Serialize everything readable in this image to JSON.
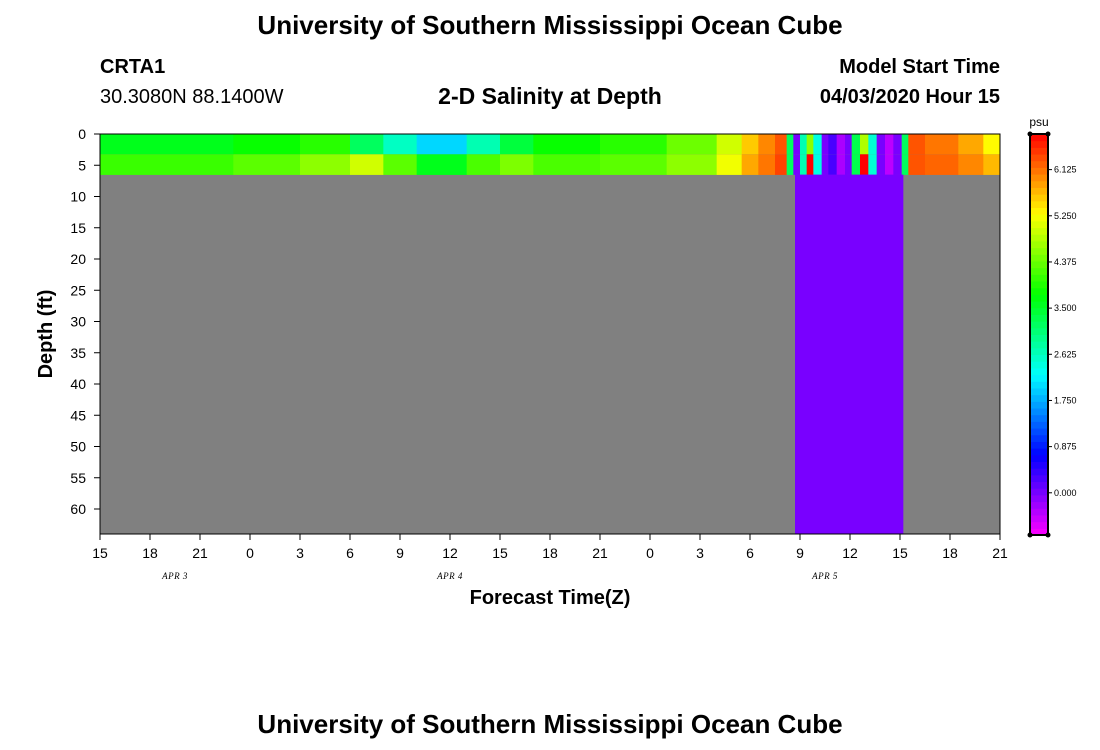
{
  "header": {
    "top_title": "University of Southern Mississippi Ocean Cube",
    "bottom_title": "University of Southern Mississippi Ocean Cube",
    "station_id": "CRTA1",
    "station_coords": "30.3080N 88.1400W",
    "plot_title": "2-D Salinity at Depth",
    "model_start_label": "Model Start Time",
    "model_start_value": "04/03/2020 Hour 15"
  },
  "chart_data": {
    "type": "heatmap",
    "title": "2-D Salinity at Depth",
    "xlabel": "Forecast Time(Z)",
    "ylabel": "Depth (ft)",
    "x_hours_range": [
      0,
      54
    ],
    "x_ticks": [
      {
        "h": 0,
        "label": "15"
      },
      {
        "h": 3,
        "label": "18"
      },
      {
        "h": 6,
        "label": "21"
      },
      {
        "h": 9,
        "label": "0"
      },
      {
        "h": 12,
        "label": "3"
      },
      {
        "h": 15,
        "label": "6"
      },
      {
        "h": 18,
        "label": "9"
      },
      {
        "h": 21,
        "label": "12"
      },
      {
        "h": 24,
        "label": "15"
      },
      {
        "h": 27,
        "label": "18"
      },
      {
        "h": 30,
        "label": "21"
      },
      {
        "h": 33,
        "label": "0"
      },
      {
        "h": 36,
        "label": "3"
      },
      {
        "h": 39,
        "label": "6"
      },
      {
        "h": 42,
        "label": "9"
      },
      {
        "h": 45,
        "label": "12"
      },
      {
        "h": 48,
        "label": "15"
      },
      {
        "h": 51,
        "label": "18"
      },
      {
        "h": 54,
        "label": "21"
      }
    ],
    "date_labels": [
      {
        "h": 4.5,
        "label": "APR 3"
      },
      {
        "h": 21,
        "label": "APR 4"
      },
      {
        "h": 43.5,
        "label": "APR 5"
      }
    ],
    "ylim": [
      0,
      64
    ],
    "y_ticks": [
      0,
      5,
      10,
      15,
      20,
      25,
      30,
      35,
      40,
      45,
      50,
      55,
      60
    ],
    "water_depth_ft": 6.5,
    "no_data_color": "#808080",
    "fill_value": 0.0,
    "surface_columns": [
      {
        "h_start": 0,
        "h_end": 8,
        "top": 3.6,
        "bottom": 4.1
      },
      {
        "h_start": 8,
        "h_end": 12,
        "top": 3.8,
        "bottom": 4.3
      },
      {
        "h_start": 12,
        "h_end": 15,
        "top": 4.0,
        "bottom": 4.6
      },
      {
        "h_start": 15,
        "h_end": 17,
        "top": 3.2,
        "bottom": 5.0
      },
      {
        "h_start": 17,
        "h_end": 19,
        "top": 2.6,
        "bottom": 4.3
      },
      {
        "h_start": 19,
        "h_end": 22,
        "top": 2.0,
        "bottom": 3.6
      },
      {
        "h_start": 22,
        "h_end": 24,
        "top": 2.7,
        "bottom": 4.2
      },
      {
        "h_start": 24,
        "h_end": 26,
        "top": 3.4,
        "bottom": 4.5
      },
      {
        "h_start": 26,
        "h_end": 30,
        "top": 3.8,
        "bottom": 4.2
      },
      {
        "h_start": 30,
        "h_end": 34,
        "top": 4.0,
        "bottom": 4.3
      },
      {
        "h_start": 34,
        "h_end": 37,
        "top": 4.4,
        "bottom": 4.6
      },
      {
        "h_start": 37,
        "h_end": 38.5,
        "top": 5.0,
        "bottom": 5.2
      },
      {
        "h_start": 38.5,
        "h_end": 39.5,
        "top": 5.6,
        "bottom": 5.8
      },
      {
        "h_start": 39.5,
        "h_end": 40.5,
        "top": 6.0,
        "bottom": 6.1
      },
      {
        "h_start": 40.5,
        "h_end": 41.2,
        "top": 6.3,
        "bottom": 6.4
      },
      {
        "h_start": 41.2,
        "h_end": 41.6,
        "top": 3.2,
        "bottom": 3.2
      },
      {
        "h_start": 41.6,
        "h_end": 42.0,
        "top": 0.0,
        "bottom": 0.0
      },
      {
        "h_start": 42.0,
        "h_end": 42.4,
        "top": 2.7,
        "bottom": 2.7
      },
      {
        "h_start": 42.4,
        "h_end": 42.8,
        "top": 4.6,
        "bottom": 6.8
      },
      {
        "h_start": 42.8,
        "h_end": 43.3,
        "top": 2.4,
        "bottom": 2.4
      },
      {
        "h_start": 43.3,
        "h_end": 43.7,
        "top": 0.0,
        "bottom": 0.0
      },
      {
        "h_start": 43.7,
        "h_end": 44.2,
        "top": 0.3,
        "bottom": 0.3
      },
      {
        "h_start": 44.2,
        "h_end": 44.7,
        "top": -0.3,
        "bottom": -0.3
      },
      {
        "h_start": 44.7,
        "h_end": 45.1,
        "top": 0.0,
        "bottom": 0.0
      },
      {
        "h_start": 45.1,
        "h_end": 45.6,
        "top": 3.3,
        "bottom": 3.3
      },
      {
        "h_start": 45.6,
        "h_end": 46.1,
        "top": 4.8,
        "bottom": 6.8
      },
      {
        "h_start": 46.1,
        "h_end": 46.6,
        "top": 2.5,
        "bottom": 2.5
      },
      {
        "h_start": 46.6,
        "h_end": 47.1,
        "top": 0.0,
        "bottom": 0.0
      },
      {
        "h_start": 47.1,
        "h_end": 47.6,
        "top": -0.4,
        "bottom": -0.4
      },
      {
        "h_start": 47.6,
        "h_end": 48.1,
        "top": 0.0,
        "bottom": 0.0
      },
      {
        "h_start": 48.1,
        "h_end": 48.5,
        "top": 3.2,
        "bottom": 3.2
      },
      {
        "h_start": 48.5,
        "h_end": 49.5,
        "top": 6.3,
        "bottom": 6.3
      },
      {
        "h_start": 49.5,
        "h_end": 51.5,
        "top": 6.1,
        "bottom": 6.2
      },
      {
        "h_start": 51.5,
        "h_end": 53,
        "top": 5.8,
        "bottom": 6.0
      },
      {
        "h_start": 53,
        "h_end": 54,
        "top": 5.3,
        "bottom": 5.7
      }
    ],
    "fill_regions": [
      {
        "h_start": 41.7,
        "h_end": 48.2,
        "depth_top": 6.5,
        "depth_bottom": 64,
        "value": 0.0
      }
    ],
    "colorbar": {
      "unit": "psu",
      "range": [
        -0.8,
        6.8
      ],
      "tick_values": [
        0.0,
        0.875,
        1.75,
        2.625,
        3.5,
        4.375,
        5.25,
        6.125
      ],
      "tick_labels": [
        "0.000",
        "0.875",
        "1.750",
        "2.625",
        "3.500",
        "4.375",
        "5.250",
        "6.125"
      ],
      "colors": [
        "#ff00ff",
        "#8000ff",
        "#0000ff",
        "#0080ff",
        "#00ffff",
        "#00ff80",
        "#00ff00",
        "#80ff00",
        "#ffff00",
        "#ff8000",
        "#ff0000"
      ]
    }
  }
}
